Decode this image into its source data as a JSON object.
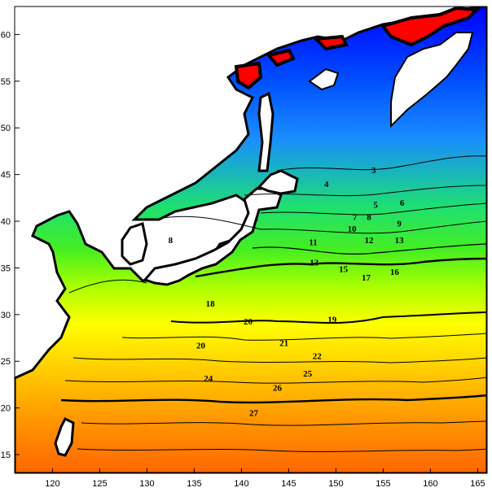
{
  "map": {
    "x_axis": {
      "range": [
        116,
        166
      ],
      "ticks": [
        120,
        125,
        130,
        135,
        140,
        145,
        150,
        155,
        160,
        165
      ]
    },
    "y_axis": {
      "range": [
        13,
        63
      ],
      "ticks": [
        15,
        20,
        25,
        30,
        35,
        40,
        45,
        50,
        55,
        60
      ]
    },
    "colors": {
      "land": "#ffffff",
      "coast": "#000000",
      "cold_extreme": "#ff0000",
      "scale": [
        "#0000ff",
        "#0a50ff",
        "#1a8cff",
        "#19c7c7",
        "#1fe080",
        "#22dd22",
        "#aaff00",
        "#ffff00",
        "#ffcc00",
        "#ff9900",
        "#ff6600"
      ]
    },
    "contour_labels": [
      {
        "text": "3",
        "lon": 154.0,
        "lat": 45.5
      },
      {
        "text": "4",
        "lon": 149.0,
        "lat": 44.0
      },
      {
        "text": "5",
        "lon": 154.2,
        "lat": 41.8
      },
      {
        "text": "6",
        "lon": 157.0,
        "lat": 42.0
      },
      {
        "text": "7",
        "lon": 152.0,
        "lat": 40.5
      },
      {
        "text": "8",
        "lon": 153.5,
        "lat": 40.5
      },
      {
        "text": "8",
        "lon": 132.5,
        "lat": 38.0
      },
      {
        "text": "9",
        "lon": 156.7,
        "lat": 39.8
      },
      {
        "text": "10",
        "lon": 151.7,
        "lat": 39.2
      },
      {
        "text": "11",
        "lon": 147.6,
        "lat": 37.8
      },
      {
        "text": "12",
        "lon": 153.5,
        "lat": 38.0
      },
      {
        "text": "13",
        "lon": 156.7,
        "lat": 38.0
      },
      {
        "text": "13",
        "lon": 147.7,
        "lat": 35.6
      },
      {
        "text": "15",
        "lon": 150.8,
        "lat": 34.9
      },
      {
        "text": "16",
        "lon": 156.2,
        "lat": 34.6
      },
      {
        "text": "17",
        "lon": 153.2,
        "lat": 34.0
      },
      {
        "text": "18",
        "lon": 136.7,
        "lat": 31.2
      },
      {
        "text": "19",
        "lon": 149.6,
        "lat": 29.5
      },
      {
        "text": "20",
        "lon": 135.7,
        "lat": 26.7
      },
      {
        "text": "20",
        "lon": 140.7,
        "lat": 29.3
      },
      {
        "text": "21",
        "lon": 144.5,
        "lat": 27.0
      },
      {
        "text": "22",
        "lon": 148.0,
        "lat": 25.6
      },
      {
        "text": "24",
        "lon": 136.5,
        "lat": 23.2
      },
      {
        "text": "25",
        "lon": 147.0,
        "lat": 23.7
      },
      {
        "text": "26",
        "lon": 143.8,
        "lat": 22.2
      },
      {
        "text": "27",
        "lon": 141.3,
        "lat": 19.5
      }
    ]
  }
}
